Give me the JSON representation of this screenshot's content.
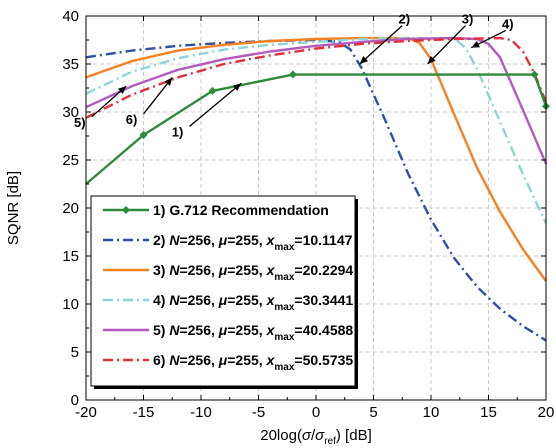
{
  "chart_data": {
    "type": "line",
    "xlabel": {
      "prefix": "20log(",
      "sym1": "σ",
      "slash": "/",
      "sym2": "σ",
      "sub": "ref",
      "suffix": ") [dB]"
    },
    "ylabel": "SQNR [dB]",
    "xlim": [
      -20,
      20
    ],
    "ylim": [
      0,
      40
    ],
    "xticks": [
      "-20",
      "-15",
      "-10",
      "-5",
      "0",
      "5",
      "10",
      "15",
      "20"
    ],
    "yticks": [
      "0",
      "5",
      "10",
      "15",
      "20",
      "25",
      "30",
      "35",
      "40"
    ],
    "grid": true,
    "legend_position": "bottom-left",
    "series": [
      {
        "id": "1",
        "name": "1) G.712 Recommendation",
        "color": "#2e8b3a",
        "dash": "",
        "markers": true,
        "x": [
          -20,
          -15,
          -9,
          -2,
          19,
          20
        ],
        "y": [
          22.5,
          27.6,
          32.2,
          33.9,
          33.9,
          30.6
        ]
      },
      {
        "id": "2",
        "name": "2) N=256, μ=255, x_max=10.1147",
        "color": "#2f4fa3",
        "dash": "10,4,2,4",
        "x": [
          -20,
          -16,
          -12,
          -8,
          -4,
          0,
          2,
          3,
          4,
          6,
          8,
          10,
          12,
          14,
          16,
          18,
          20
        ],
        "y": [
          35.7,
          36.4,
          36.9,
          37.2,
          37.4,
          37.5,
          37.3,
          36.5,
          34.5,
          29.2,
          23.6,
          18.8,
          14.8,
          11.8,
          9.5,
          7.7,
          6.2
        ]
      },
      {
        "id": "3",
        "name": "3) N=256, μ=255, x_max=20.2294",
        "color": "#f58220",
        "dash": "",
        "x": [
          -20,
          -16,
          -12,
          -8,
          -4,
          0,
          4,
          8,
          9,
          10,
          12,
          14,
          16,
          18,
          20
        ],
        "y": [
          33.6,
          35.3,
          36.4,
          37.0,
          37.4,
          37.6,
          37.7,
          37.7,
          37.2,
          35.5,
          29.8,
          24.2,
          19.6,
          15.7,
          12.4
        ]
      },
      {
        "id": "4",
        "name": "4) N=256, μ=255, x_max=30.3441",
        "color": "#8fd4d8",
        "dash": "10,4,2,4",
        "x": [
          -20,
          -16,
          -12,
          -8,
          -4,
          0,
          4,
          8,
          12,
          13,
          14,
          16,
          18,
          20
        ],
        "y": [
          31.9,
          34.2,
          35.6,
          36.5,
          37.0,
          37.3,
          37.6,
          37.7,
          37.7,
          36.7,
          34.5,
          29.0,
          23.5,
          18.4
        ]
      },
      {
        "id": "5",
        "name": "5) N=256, μ=255, x_max=40.4588",
        "color": "#b25bbf",
        "dash": "",
        "x": [
          -20,
          -16,
          -12,
          -8,
          -4,
          0,
          4,
          8,
          12,
          14,
          15,
          16,
          18,
          20
        ],
        "y": [
          30.5,
          32.7,
          34.4,
          35.5,
          36.3,
          36.9,
          37.3,
          37.6,
          37.7,
          37.6,
          37.1,
          35.7,
          30.2,
          24.6
        ]
      },
      {
        "id": "6",
        "name": "6) N=256, μ=255, x_max=50.5735",
        "color": "#e0303a",
        "dash": "10,4,2,4",
        "x": [
          -20,
          -16,
          -12,
          -8,
          -4,
          0,
          4,
          8,
          12,
          16,
          17,
          18,
          19,
          20
        ],
        "y": [
          29.4,
          31.8,
          33.6,
          35.0,
          35.9,
          36.6,
          37.1,
          37.4,
          37.6,
          37.7,
          37.5,
          36.3,
          34.0,
          31.0
        ]
      }
    ],
    "legend": [
      {
        "num": "1)",
        "text": "G.712 Recommendation"
      },
      {
        "num": "2)",
        "N": "256",
        "mu": "255",
        "xmax": "10.1147"
      },
      {
        "num": "3)",
        "N": "256",
        "mu": "255",
        "xmax": "20.2294"
      },
      {
        "num": "4)",
        "N": "256",
        "mu": "255",
        "xmax": "30.3441"
      },
      {
        "num": "5)",
        "N": "256",
        "mu": "255",
        "xmax": "40.4588"
      },
      {
        "num": "6)",
        "N": "256",
        "mu": "255",
        "xmax": "50.5735"
      }
    ],
    "annotations": [
      {
        "label": "1)",
        "target": [
          -6.5,
          33.0
        ],
        "text_at": [
          -11.0,
          28.5
        ]
      },
      {
        "label": "2)",
        "target": [
          3.8,
          35.0
        ],
        "text_at": [
          7.5,
          39.0
        ]
      },
      {
        "label": "3)",
        "target": [
          9.7,
          35.0
        ],
        "text_at": [
          13.0,
          39.0
        ]
      },
      {
        "label": "4)",
        "target": [
          13.5,
          36.7
        ],
        "text_at": [
          16.5,
          38.5
        ]
      },
      {
        "label": "5)",
        "target": [
          -16.5,
          32.7
        ],
        "text_at": [
          -19.5,
          29.5
        ]
      },
      {
        "label": "6)",
        "target": [
          -12.5,
          33.6
        ],
        "text_at": [
          -15.0,
          29.8
        ]
      }
    ],
    "legend_labels": {
      "N": "N",
      "mu": "μ",
      "x": "x",
      "sub": "max",
      "eq": "=",
      "sep": ", "
    }
  }
}
